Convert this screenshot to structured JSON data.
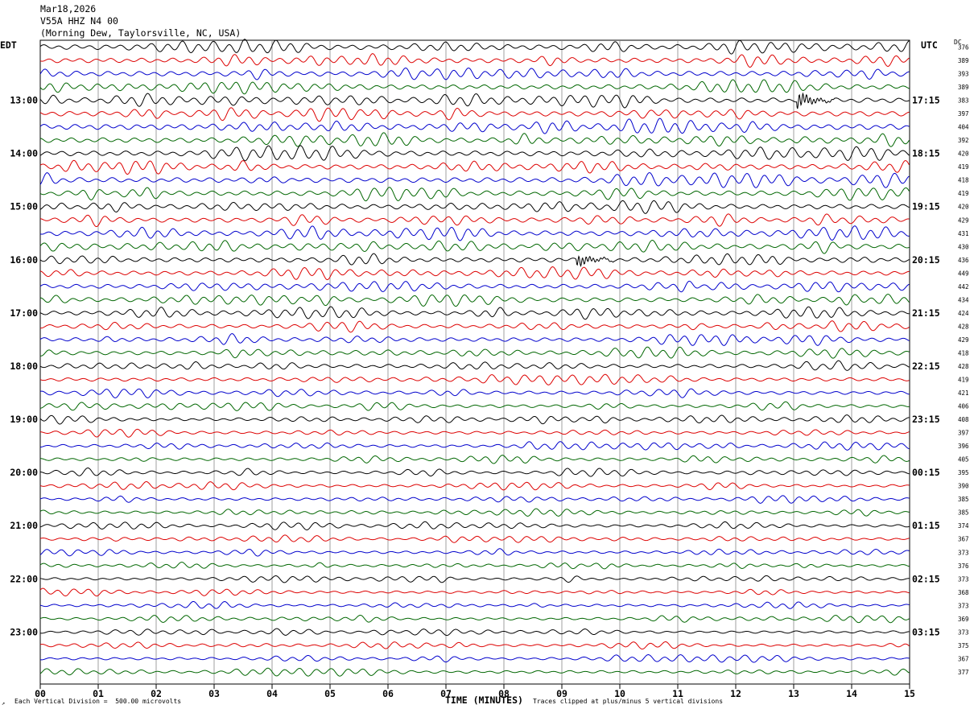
{
  "header": {
    "date": "Mar18,2026",
    "station": "V55A HHZ N4 00",
    "location": "(Morning Dew, Taylorsville, NC, USA)"
  },
  "axes": {
    "left_timezone": "EDT",
    "right_timezone": "UTC",
    "dc_label": "DC",
    "x_title": "TIME (MINUTES)"
  },
  "footer": {
    "scale": "Each Vertical Division =  500.00 microvolts",
    "clip": "Traces clipped at plus/minus 5 vertical divisions",
    "corner": "↗"
  },
  "colors": {
    "trace_cycle": [
      "#000000",
      "#dd0000",
      "#0000cc",
      "#006600"
    ],
    "grid": "#888888",
    "frame": "#000000"
  },
  "chart_data": {
    "type": "line",
    "subtype": "helicorder",
    "xlabel": "TIME (MINUTES)",
    "xlim": [
      0,
      15
    ],
    "x_ticks": [
      "00",
      "01",
      "02",
      "03",
      "04",
      "05",
      "06",
      "07",
      "08",
      "09",
      "10",
      "11",
      "12",
      "13",
      "14",
      "15"
    ],
    "minutes_per_trace": 15,
    "traces_per_hour": 4,
    "trace_count": 48,
    "left_hour_labels": [
      "13:00",
      "14:00",
      "15:00",
      "16:00",
      "17:00",
      "18:00",
      "19:00",
      "20:00",
      "21:00",
      "22:00",
      "23:00"
    ],
    "right_hour_labels": [
      "17:15",
      "18:15",
      "19:15",
      "20:15",
      "21:15",
      "22:15",
      "23:15",
      "00:15",
      "01:15",
      "02:15",
      "03:15"
    ],
    "dc_offsets": [
      376,
      389,
      393,
      389,
      383,
      397,
      404,
      392,
      420,
      419,
      418,
      419,
      420,
      429,
      431,
      430,
      436,
      449,
      442,
      434,
      424,
      428,
      429,
      418,
      428,
      419,
      421,
      406,
      408,
      397,
      396,
      405,
      395,
      390,
      385,
      385,
      374,
      367,
      373,
      376,
      373,
      368,
      373,
      369,
      373,
      375,
      367,
      377
    ],
    "amplitude_divisions": [
      2.6,
      2.4,
      2.5,
      2.4,
      2.5,
      2.6,
      2.8,
      2.5,
      2.6,
      2.5,
      2.6,
      2.5,
      2.4,
      2.4,
      2.5,
      2.5,
      2.3,
      2.2,
      2.2,
      2.2,
      2.1,
      2.0,
      2.0,
      2.0,
      1.9,
      1.8,
      1.7,
      1.6,
      1.6,
      1.5,
      1.5,
      1.5,
      1.5,
      1.4,
      1.4,
      1.4,
      1.4,
      1.3,
      1.4,
      1.3,
      1.3,
      1.3,
      1.3,
      1.3,
      1.3,
      1.3,
      1.3,
      1.4
    ],
    "events": [
      {
        "trace": 4,
        "minute": 13.1,
        "amplitude_divisions": 4
      },
      {
        "trace": 16,
        "minute": 9.3,
        "amplitude_divisions": 3
      }
    ]
  }
}
